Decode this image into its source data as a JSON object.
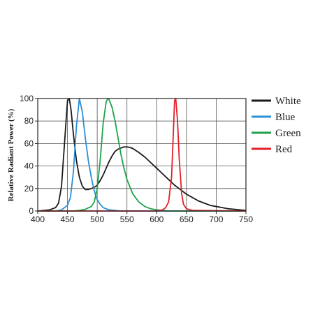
{
  "chart_data": {
    "type": "line",
    "title": "",
    "xlabel": "",
    "ylabel": "Relative Radiant Power (%)",
    "xlim": [
      400,
      750
    ],
    "ylim": [
      0,
      100
    ],
    "xticks": [
      400,
      450,
      500,
      550,
      600,
      650,
      700,
      750
    ],
    "yticks": [
      0,
      20,
      40,
      60,
      80,
      100
    ],
    "grid": true,
    "legend_position": "right",
    "series": [
      {
        "name": "White",
        "color": "#1a1a1a",
        "x": [
          400,
          420,
          430,
          435,
          440,
          445,
          450,
          453,
          456,
          460,
          465,
          470,
          475,
          480,
          485,
          490,
          495,
          500,
          505,
          510,
          515,
          520,
          525,
          530,
          535,
          540,
          545,
          550,
          555,
          560,
          570,
          580,
          590,
          600,
          610,
          620,
          630,
          640,
          650,
          660,
          670,
          680,
          690,
          700,
          710,
          720,
          730,
          740,
          750
        ],
        "y": [
          0,
          1,
          3,
          7,
          22,
          60,
          98,
          100,
          90,
          68,
          45,
          30,
          22,
          19,
          19,
          20,
          21,
          23,
          27,
          32,
          38,
          44,
          49,
          53,
          55,
          56,
          57,
          57,
          56.5,
          55.5,
          52,
          48,
          43,
          38,
          33,
          28,
          23,
          19,
          15,
          12,
          9,
          7,
          5,
          4,
          3,
          2,
          1.5,
          1,
          0.5
        ]
      },
      {
        "name": "Blue",
        "color": "#2a8fd6",
        "x": [
          400,
          430,
          440,
          450,
          455,
          460,
          465,
          470,
          475,
          480,
          485,
          490,
          495,
          500,
          505,
          510,
          520,
          530,
          540,
          560,
          750
        ],
        "y": [
          0,
          0,
          1,
          5,
          12,
          35,
          75,
          100,
          88,
          65,
          45,
          30,
          18,
          10,
          6,
          3,
          1,
          0.5,
          0,
          0,
          0
        ]
      },
      {
        "name": "Green",
        "color": "#1ea34a",
        "x": [
          400,
          460,
          470,
          480,
          490,
          495,
          500,
          505,
          510,
          515,
          518,
          520,
          525,
          530,
          535,
          540,
          545,
          550,
          560,
          570,
          580,
          590,
          600,
          620,
          750
        ],
        "y": [
          0,
          0,
          0.5,
          1.5,
          4,
          8,
          20,
          45,
          78,
          97,
          100,
          99,
          92,
          80,
          65,
          50,
          38,
          28,
          15,
          8,
          4,
          2,
          1,
          0,
          0
        ]
      },
      {
        "name": "Red",
        "color": "#e32028",
        "x": [
          400,
          600,
          610,
          615,
          620,
          625,
          628,
          630,
          632,
          635,
          638,
          642,
          645,
          650,
          660,
          750
        ],
        "y": [
          0,
          0,
          1,
          3,
          8,
          30,
          70,
          98,
          100,
          80,
          45,
          15,
          6,
          2,
          0.5,
          0
        ]
      }
    ]
  }
}
